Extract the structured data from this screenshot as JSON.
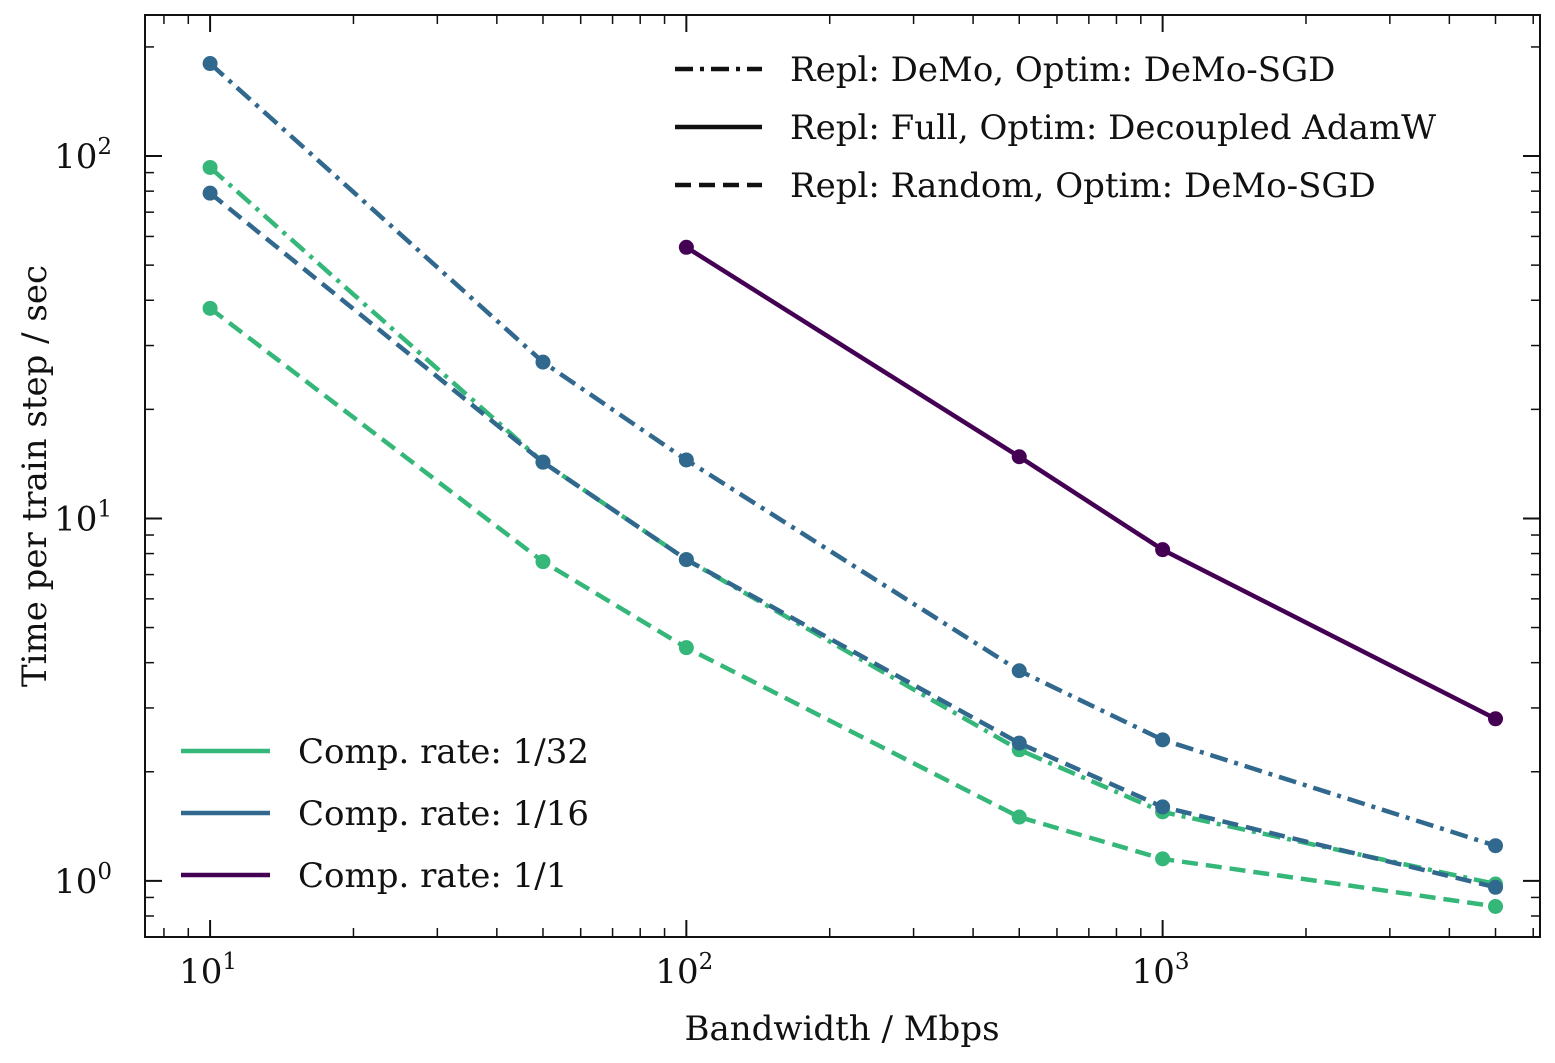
{
  "chart_data": {
    "type": "line",
    "xscale": "log",
    "yscale": "log",
    "xlabel": "Bandwidth / Mbps",
    "ylabel": "Time per train step / sec",
    "xlim": [
      7.3,
      6200
    ],
    "ylim": [
      0.7,
      245
    ],
    "xticks": [
      {
        "value": 10,
        "base": "10",
        "exp": "1"
      },
      {
        "value": 100,
        "base": "10",
        "exp": "2"
      },
      {
        "value": 1000,
        "base": "10",
        "exp": "3"
      }
    ],
    "yticks": [
      {
        "value": 1,
        "base": "10",
        "exp": "0"
      },
      {
        "value": 10,
        "base": "10",
        "exp": "1"
      },
      {
        "value": 100,
        "base": "10",
        "exp": "2"
      }
    ],
    "grid": false,
    "series": [
      {
        "name": "Comp. rate: 1/16 — Repl: DeMo, Optim: DeMo-SGD",
        "rate": "1/16",
        "style": "dashdot",
        "color": "#31688e",
        "x": [
          10,
          50,
          100,
          500,
          1000,
          5000
        ],
        "y": [
          180,
          27,
          14.5,
          3.8,
          2.45,
          1.25
        ]
      },
      {
        "name": "Comp. rate: 1/32 — Repl: DeMo, Optim: DeMo-SGD",
        "rate": "1/32",
        "style": "dashdot",
        "color": "#35b779",
        "x": [
          10,
          50,
          100,
          500,
          1000,
          5000
        ],
        "y": [
          93,
          14.3,
          7.7,
          2.3,
          1.55,
          0.98
        ]
      },
      {
        "name": "Comp. rate: 1/16 — Repl: Random, Optim: DeMo-SGD",
        "rate": "1/16",
        "style": "dashed",
        "color": "#31688e",
        "x": [
          10,
          50,
          100,
          500,
          1000,
          5000
        ],
        "y": [
          79,
          14.3,
          7.7,
          2.4,
          1.6,
          0.96
        ]
      },
      {
        "name": "Comp. rate: 1/32 — Repl: Random, Optim: DeMo-SGD",
        "rate": "1/32",
        "style": "dashed",
        "color": "#35b779",
        "x": [
          10,
          50,
          100,
          500,
          1000,
          5000
        ],
        "y": [
          38,
          7.6,
          4.4,
          1.5,
          1.15,
          0.85
        ]
      },
      {
        "name": "Comp. rate: 1/1 — Repl: Full, Optim: Decoupled AdamW",
        "rate": "1/1",
        "style": "solid",
        "color": "#440154",
        "x": [
          100,
          500,
          1000,
          5000
        ],
        "y": [
          56,
          14.8,
          8.2,
          2.8
        ]
      }
    ],
    "legend_styles": {
      "placement": "top-right",
      "entries": [
        {
          "label": "Repl: DeMo, Optim: DeMo-SGD",
          "style": "dashdot"
        },
        {
          "label": "Repl: Full, Optim: Decoupled AdamW",
          "style": "solid"
        },
        {
          "label": "Repl: Random, Optim: DeMo-SGD",
          "style": "dashed"
        }
      ]
    },
    "legend_rates": {
      "placement": "bottom-left",
      "entries": [
        {
          "label": "Comp. rate: 1/32",
          "color": "#35b779"
        },
        {
          "label": "Comp. rate: 1/16",
          "color": "#31688e"
        },
        {
          "label": "Comp. rate: 1/1",
          "color": "#440154"
        }
      ]
    }
  }
}
